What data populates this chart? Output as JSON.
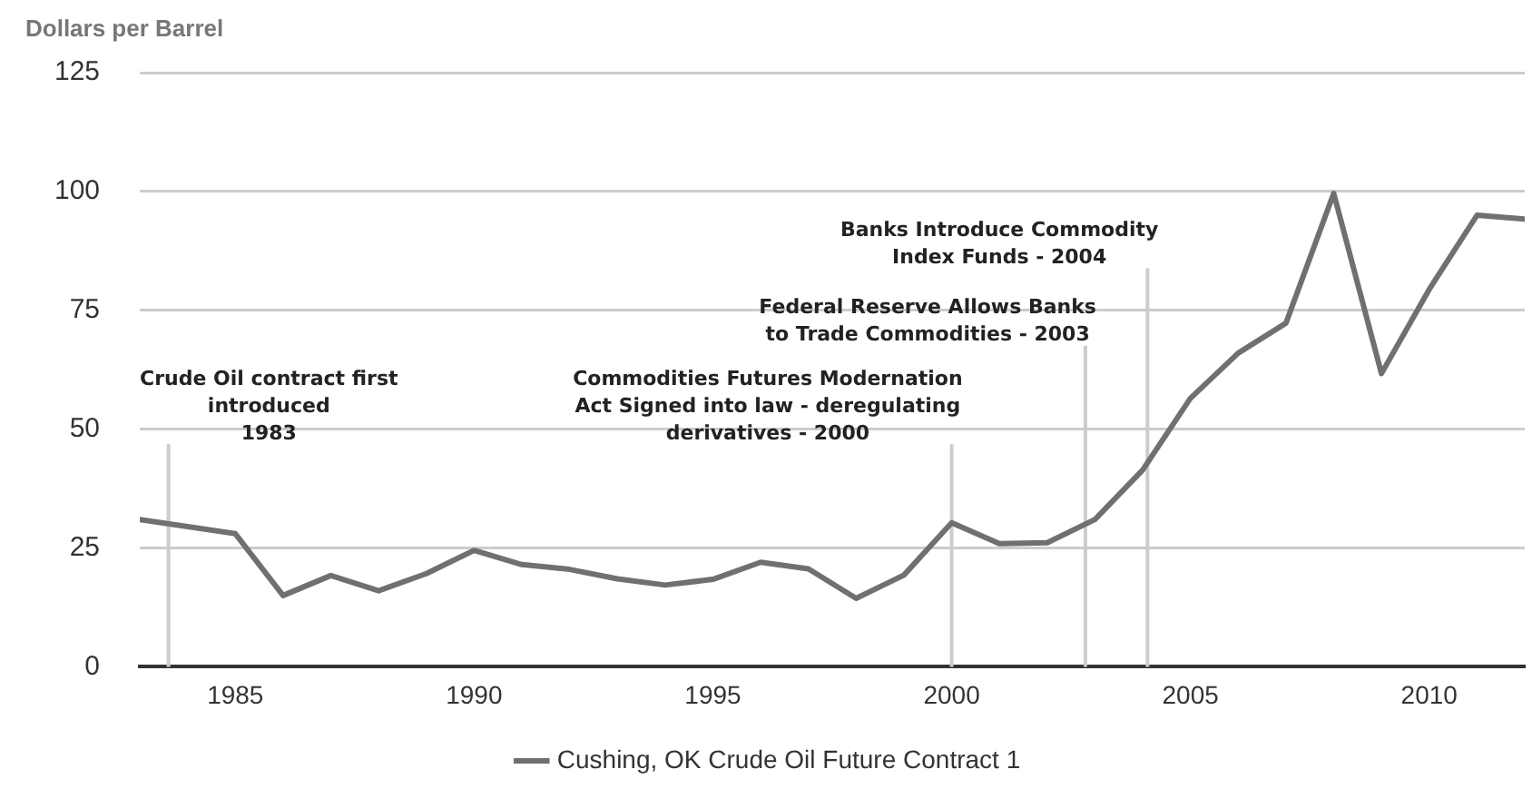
{
  "chart_data": {
    "type": "line",
    "ylabel": "Dollars per Barrel",
    "x": [
      1983,
      1984,
      1985,
      1986,
      1987,
      1988,
      1989,
      1990,
      1991,
      1992,
      1993,
      1994,
      1995,
      1996,
      1997,
      1998,
      1999,
      2000,
      2001,
      2002,
      2003,
      2004,
      2005,
      2006,
      2007,
      2008,
      2009,
      2010,
      2011,
      2012
    ],
    "series": [
      {
        "name": "Cushing, OK Crude Oil Future Contract 1",
        "color": "#707070",
        "values": [
          31,
          29.5,
          28,
          15,
          19.2,
          16,
          19.6,
          24.5,
          21.5,
          20.5,
          18.5,
          17.2,
          18.4,
          22,
          20.6,
          14.4,
          19.3,
          30.3,
          25.9,
          26.1,
          31,
          41.4,
          56.5,
          66,
          72.3,
          99.6,
          61.7,
          79.4,
          95,
          94.2
        ]
      }
    ],
    "xlim": [
      1983,
      2012
    ],
    "xticks": [
      1985,
      1990,
      1995,
      2000,
      2005,
      2010
    ],
    "ylim": [
      0,
      125
    ],
    "yticks": [
      0,
      25,
      50,
      75,
      100,
      125
    ],
    "grid": "y",
    "legend": "bottom",
    "marker": "none",
    "line_style": "solid",
    "ref_lines": [
      {
        "axis": "x",
        "value": 1983.6,
        "label": "Crude Oil contract first\nintroduced\n1983",
        "color": "#cccccc"
      },
      {
        "axis": "x",
        "value": 2000,
        "label": "Commodities Futures Modernation\nAct Signed into law - deregulating\nderivatives - 2000",
        "color": "#cccccc"
      },
      {
        "axis": "x",
        "value": 2002.8,
        "label": "Federal Reserve Allows Banks\nto Trade Commodities - 2003",
        "color": "#cccccc"
      },
      {
        "axis": "x",
        "value": 2004.1,
        "label": "Banks Introduce Commodity\nIndex Funds - 2004",
        "color": "#cccccc"
      }
    ]
  }
}
